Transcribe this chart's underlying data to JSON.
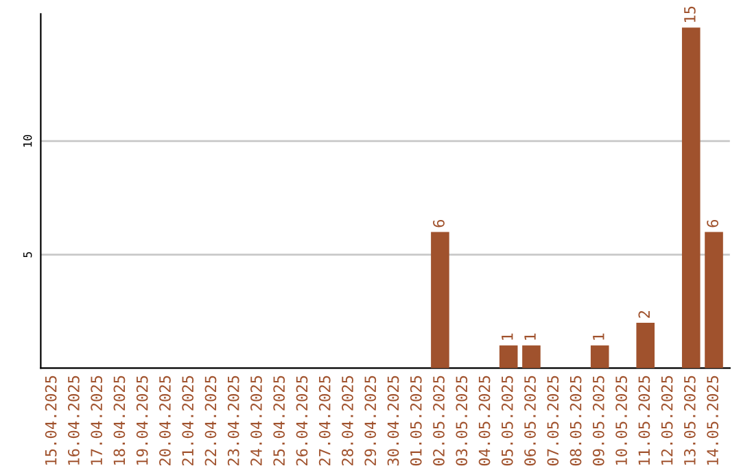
{
  "chart_data": {
    "type": "bar",
    "categories": [
      "15.04.2025",
      "16.04.2025",
      "17.04.2025",
      "18.04.2025",
      "19.04.2025",
      "20.04.2025",
      "21.04.2025",
      "22.04.2025",
      "23.04.2025",
      "24.04.2025",
      "25.04.2025",
      "26.04.2025",
      "27.04.2025",
      "28.04.2025",
      "29.04.2025",
      "30.04.2025",
      "01.05.2025",
      "02.05.2025",
      "03.05.2025",
      "04.05.2025",
      "05.05.2025",
      "06.05.2025",
      "07.05.2025",
      "08.05.2025",
      "09.05.2025",
      "10.05.2025",
      "11.05.2025",
      "12.05.2025",
      "13.05.2025",
      "14.05.2025"
    ],
    "values": [
      0,
      0,
      0,
      0,
      0,
      0,
      0,
      0,
      0,
      0,
      0,
      0,
      0,
      0,
      0,
      0,
      0,
      6,
      0,
      0,
      1,
      1,
      0,
      0,
      1,
      0,
      2,
      0,
      15,
      6
    ],
    "value_labels": [
      null,
      null,
      null,
      null,
      null,
      null,
      null,
      null,
      null,
      null,
      null,
      null,
      null,
      null,
      null,
      null,
      null,
      "6",
      null,
      null,
      "1",
      "1",
      null,
      null,
      "1",
      null,
      "2",
      null,
      "15",
      "6"
    ],
    "color": "#a0522d",
    "ylim": [
      0,
      15.6
    ],
    "yticks": [
      5,
      10
    ],
    "grid": "y"
  }
}
